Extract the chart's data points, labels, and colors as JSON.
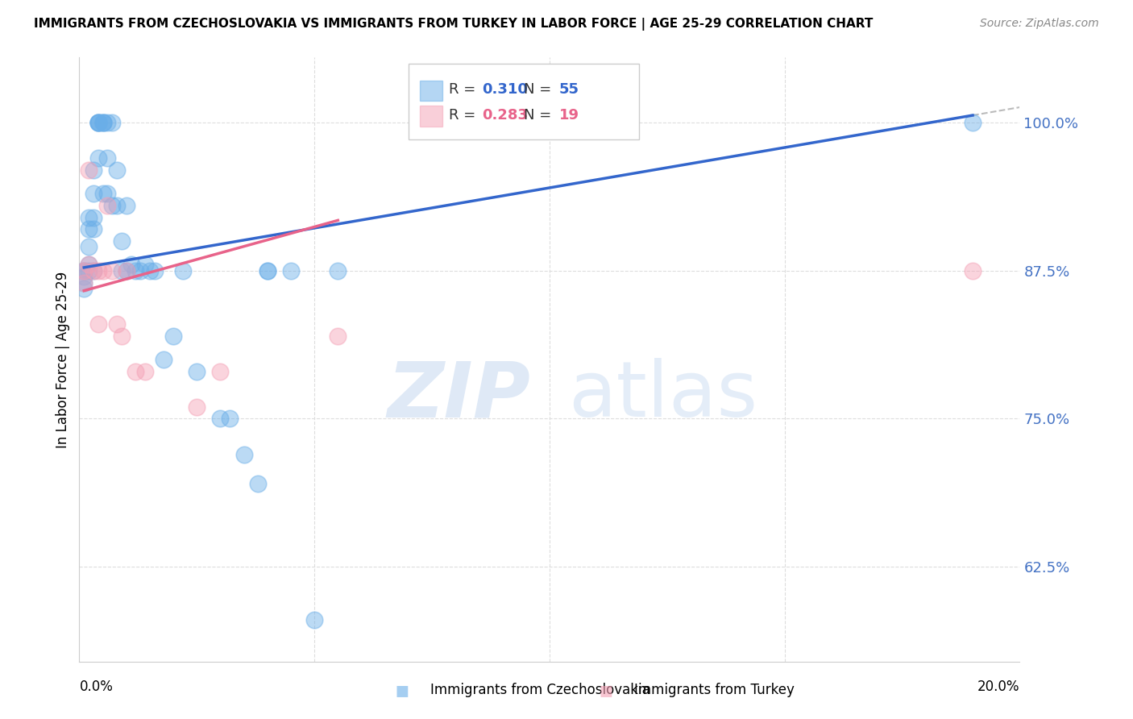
{
  "title": "IMMIGRANTS FROM CZECHOSLOVAKIA VS IMMIGRANTS FROM TURKEY IN LABOR FORCE | AGE 25-29 CORRELATION CHART",
  "source": "Source: ZipAtlas.com",
  "ylabel": "In Labor Force | Age 25-29",
  "yticks": [
    0.625,
    0.75,
    0.875,
    1.0
  ],
  "ytick_labels": [
    "62.5%",
    "75.0%",
    "87.5%",
    "100.0%"
  ],
  "xlim": [
    0.0,
    0.2
  ],
  "ylim": [
    0.545,
    1.055
  ],
  "watermark_zip": "ZIP",
  "watermark_atlas": "atlas",
  "legend_blue_R": "0.310",
  "legend_blue_N": "55",
  "legend_pink_R": "0.283",
  "legend_pink_N": "19",
  "legend_label_blue": "Immigrants from Czechoslovakia",
  "legend_label_pink": "Immigrants from Turkey",
  "color_blue": "#6aaee8",
  "color_pink": "#f4a0b5",
  "color_blue_line": "#3366cc",
  "color_pink_line": "#e8638a",
  "color_dashed": "#bbbbbb",
  "color_ytick": "#4472C4",
  "blue_x": [
    0.001,
    0.001,
    0.001,
    0.001,
    0.001,
    0.002,
    0.002,
    0.002,
    0.002,
    0.002,
    0.003,
    0.003,
    0.003,
    0.003,
    0.003,
    0.004,
    0.004,
    0.004,
    0.004,
    0.004,
    0.005,
    0.005,
    0.005,
    0.005,
    0.006,
    0.006,
    0.006,
    0.007,
    0.007,
    0.008,
    0.008,
    0.009,
    0.009,
    0.01,
    0.01,
    0.011,
    0.012,
    0.013,
    0.014,
    0.015,
    0.016,
    0.018,
    0.02,
    0.022,
    0.025,
    0.03,
    0.032,
    0.035,
    0.038,
    0.04,
    0.04,
    0.045,
    0.05,
    0.055,
    0.19
  ],
  "blue_y": [
    0.875,
    0.875,
    0.87,
    0.865,
    0.86,
    0.92,
    0.91,
    0.895,
    0.88,
    0.875,
    0.96,
    0.94,
    0.92,
    0.91,
    0.875,
    1.0,
    1.0,
    1.0,
    1.0,
    0.97,
    1.0,
    1.0,
    1.0,
    0.94,
    1.0,
    0.97,
    0.94,
    1.0,
    0.93,
    0.96,
    0.93,
    0.9,
    0.875,
    0.93,
    0.875,
    0.88,
    0.875,
    0.875,
    0.88,
    0.875,
    0.875,
    0.8,
    0.82,
    0.875,
    0.79,
    0.75,
    0.75,
    0.72,
    0.695,
    0.875,
    0.875,
    0.875,
    0.58,
    0.875,
    1.0
  ],
  "pink_x": [
    0.001,
    0.001,
    0.002,
    0.002,
    0.003,
    0.004,
    0.004,
    0.005,
    0.006,
    0.007,
    0.008,
    0.009,
    0.01,
    0.012,
    0.014,
    0.025,
    0.03,
    0.055,
    0.19
  ],
  "pink_y": [
    0.875,
    0.865,
    0.96,
    0.88,
    0.875,
    0.875,
    0.83,
    0.875,
    0.93,
    0.875,
    0.83,
    0.82,
    0.875,
    0.79,
    0.79,
    0.76,
    0.79,
    0.82,
    0.875
  ]
}
